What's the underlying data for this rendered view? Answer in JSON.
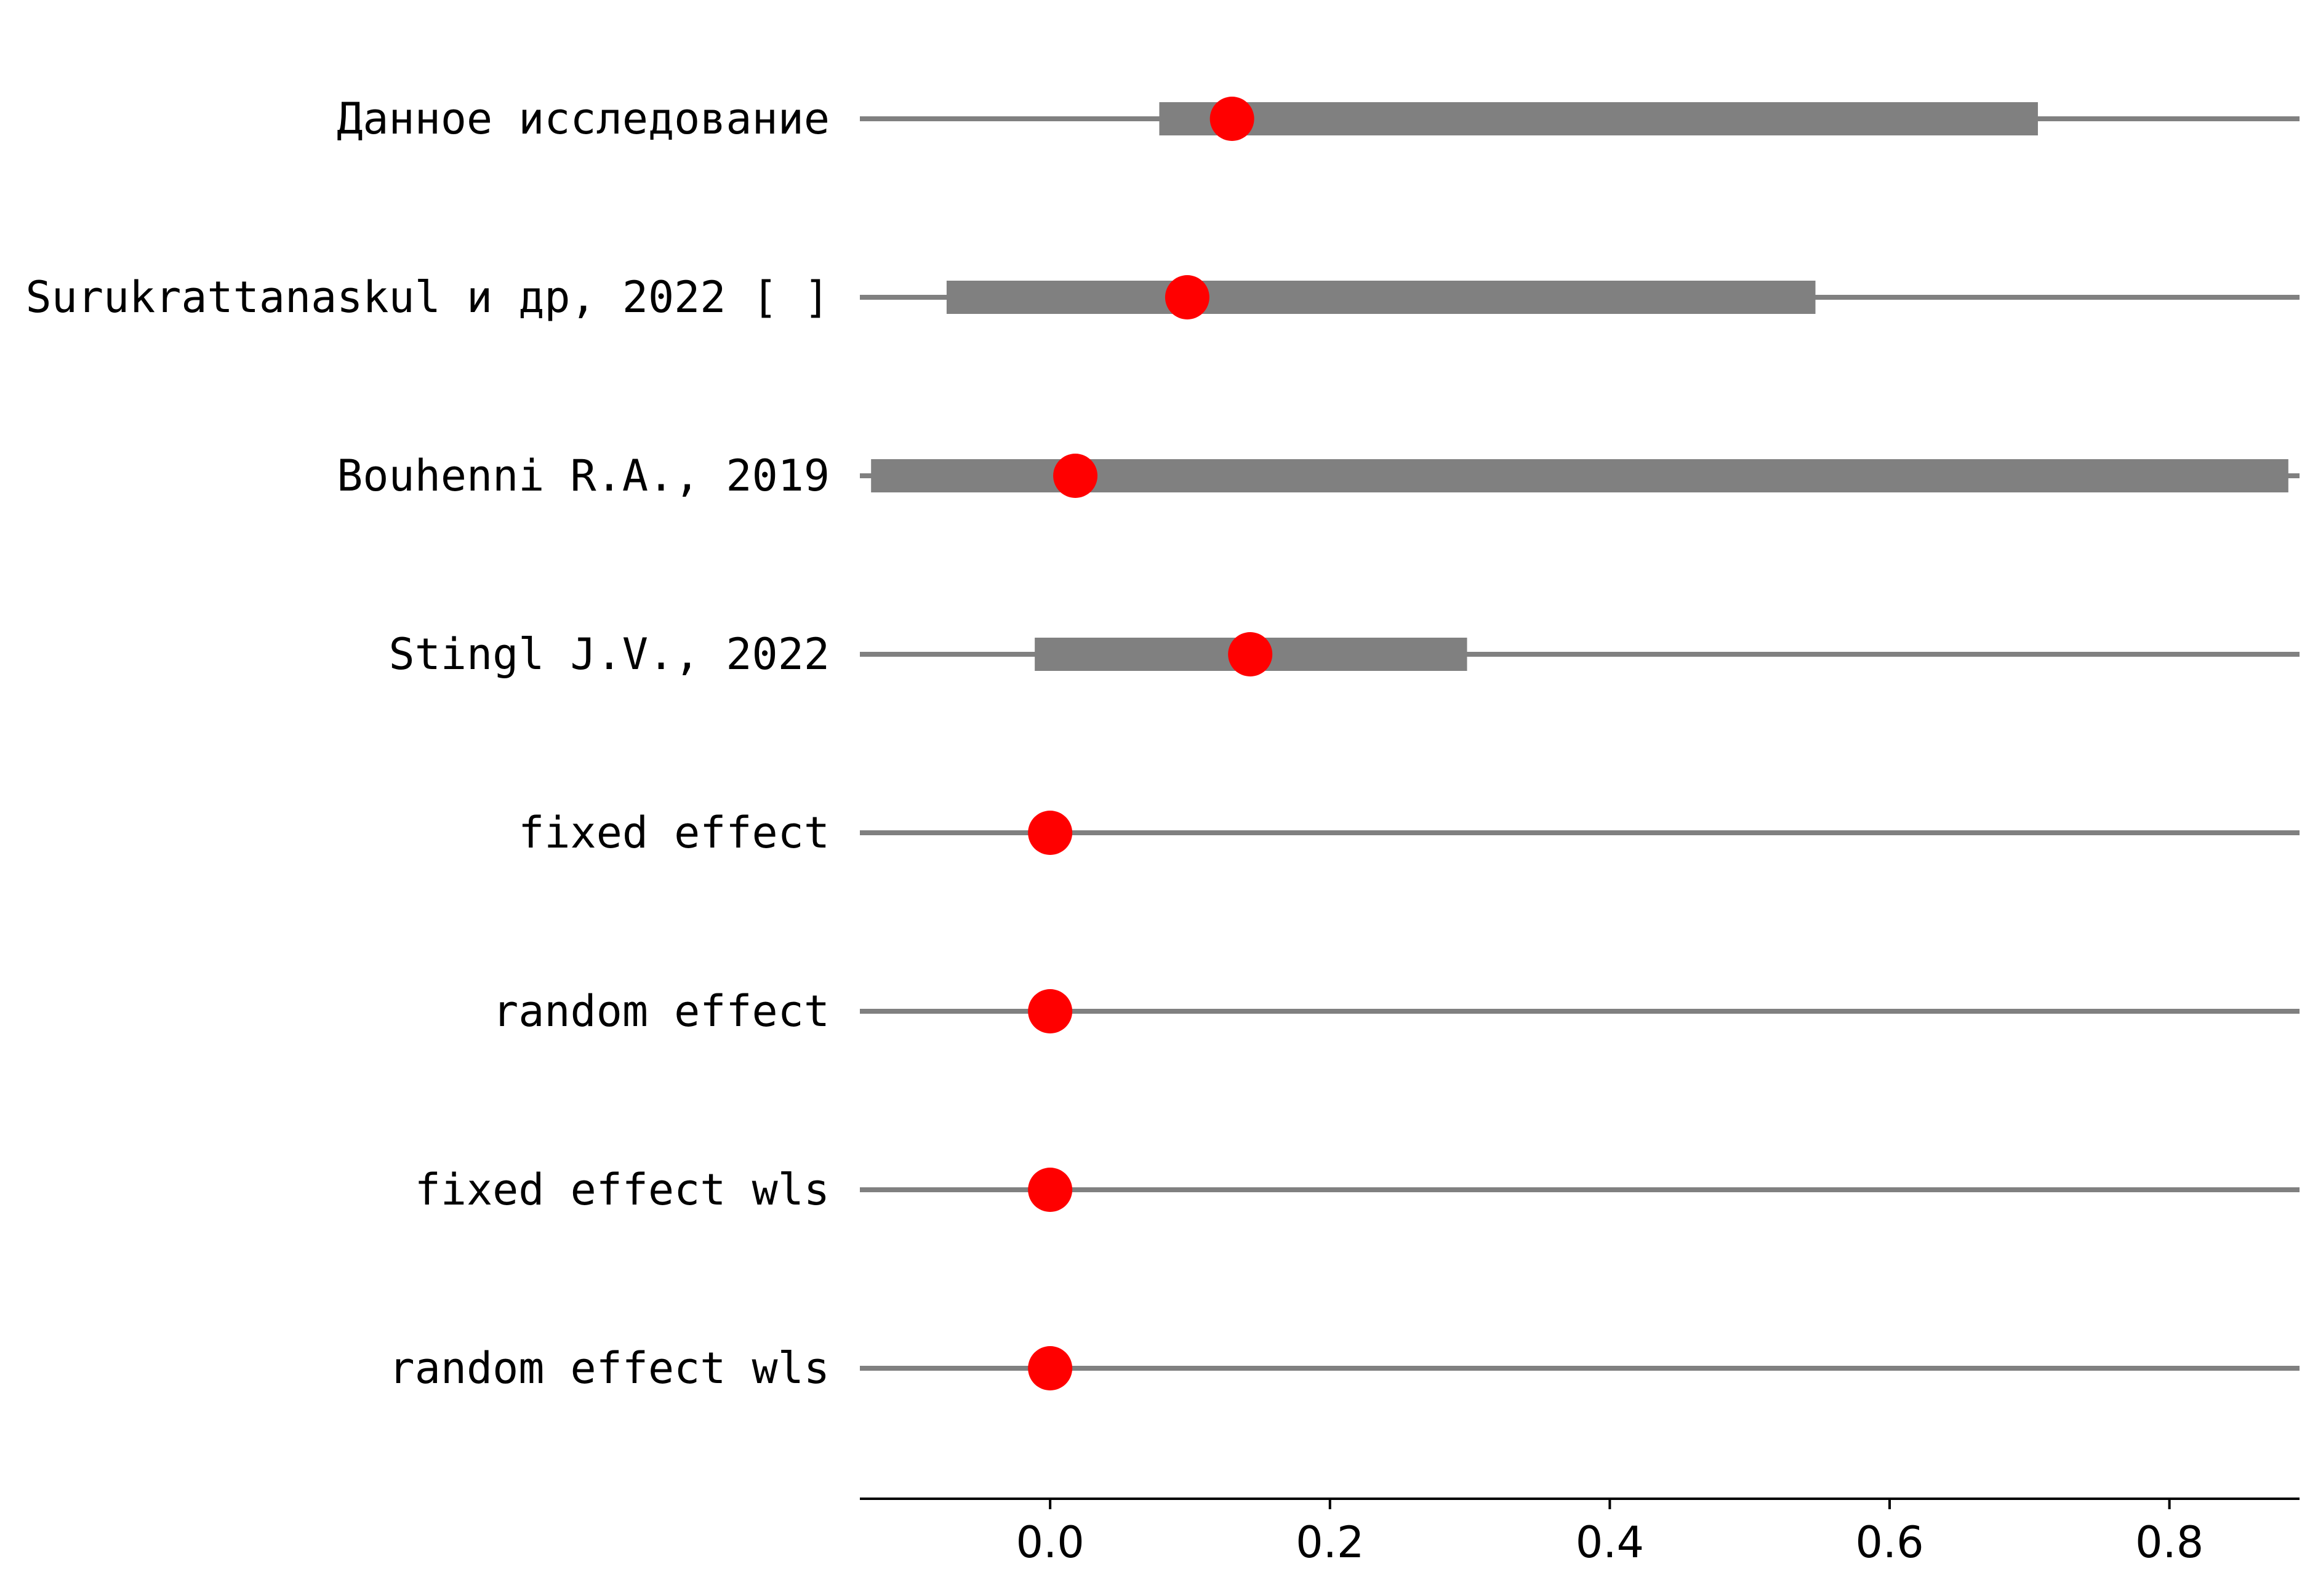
{
  "chart_data": {
    "type": "forest",
    "title": "",
    "xlabel": "",
    "ylabel": "",
    "xlim": [
      -0.136,
      0.893
    ],
    "x_ticks": [
      {
        "value": 0.0,
        "label": "0.0"
      },
      {
        "value": 0.2,
        "label": "0.2"
      },
      {
        "value": 0.4,
        "label": "0.4"
      },
      {
        "value": 0.6,
        "label": "0.6"
      },
      {
        "value": 0.8,
        "label": "0.8"
      }
    ],
    "grid": false,
    "legend": "none",
    "colors": {
      "estimate": "#ff0000",
      "interval": "#808080",
      "axis": "#000000"
    },
    "rows": [
      {
        "label": "Данное исследование",
        "estimate": 0.13,
        "ci_low": 0.078,
        "ci_high": 0.706
      },
      {
        "label": "Surukrattanaskul и др, 2022 [ ]",
        "estimate": 0.098,
        "ci_low": -0.074,
        "ci_high": 0.547
      },
      {
        "label": "Bouhenni R.A., 2019",
        "estimate": 0.018,
        "ci_low": -0.128,
        "ci_high": 0.885
      },
      {
        "label": "Stingl J.V., 2022",
        "estimate": 0.143,
        "ci_low": -0.011,
        "ci_high": 0.298
      },
      {
        "label": "fixed effect",
        "estimate": 0.0,
        "ci_low": null,
        "ci_high": null
      },
      {
        "label": "random effect",
        "estimate": 0.0,
        "ci_low": null,
        "ci_high": null
      },
      {
        "label": "fixed effect wls",
        "estimate": 0.0,
        "ci_low": null,
        "ci_high": null
      },
      {
        "label": "random effect wls",
        "estimate": 0.0,
        "ci_low": null,
        "ci_high": null
      }
    ]
  }
}
